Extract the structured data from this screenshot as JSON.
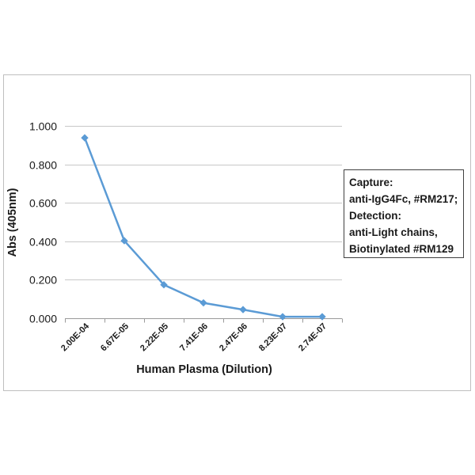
{
  "chart_data": {
    "type": "line",
    "title": "",
    "xlabel": "Human Plasma (Dilution)",
    "ylabel": "Abs (405nm)",
    "categories": [
      "2.00E-04",
      "6.67E-05",
      "2.22E-05",
      "7.41E-06",
      "2.47E-06",
      "8.23E-07",
      "2.74E-07"
    ],
    "values": [
      0.938,
      0.403,
      0.174,
      0.08,
      0.045,
      0.008,
      0.008
    ],
    "ylim": [
      0,
      1
    ],
    "yticks": [
      "0.000",
      "0.200",
      "0.400",
      "0.600",
      "0.800",
      "1.000"
    ],
    "grid": "horizontal",
    "marker": "diamond",
    "series_color": "#5b9bd5",
    "legend_placement": "right",
    "legend_lines": [
      "Capture:",
      "anti-IgG4Fc, #RM217;",
      "Detection:",
      "anti-Light chains,",
      "Biotinylated #RM129"
    ]
  }
}
